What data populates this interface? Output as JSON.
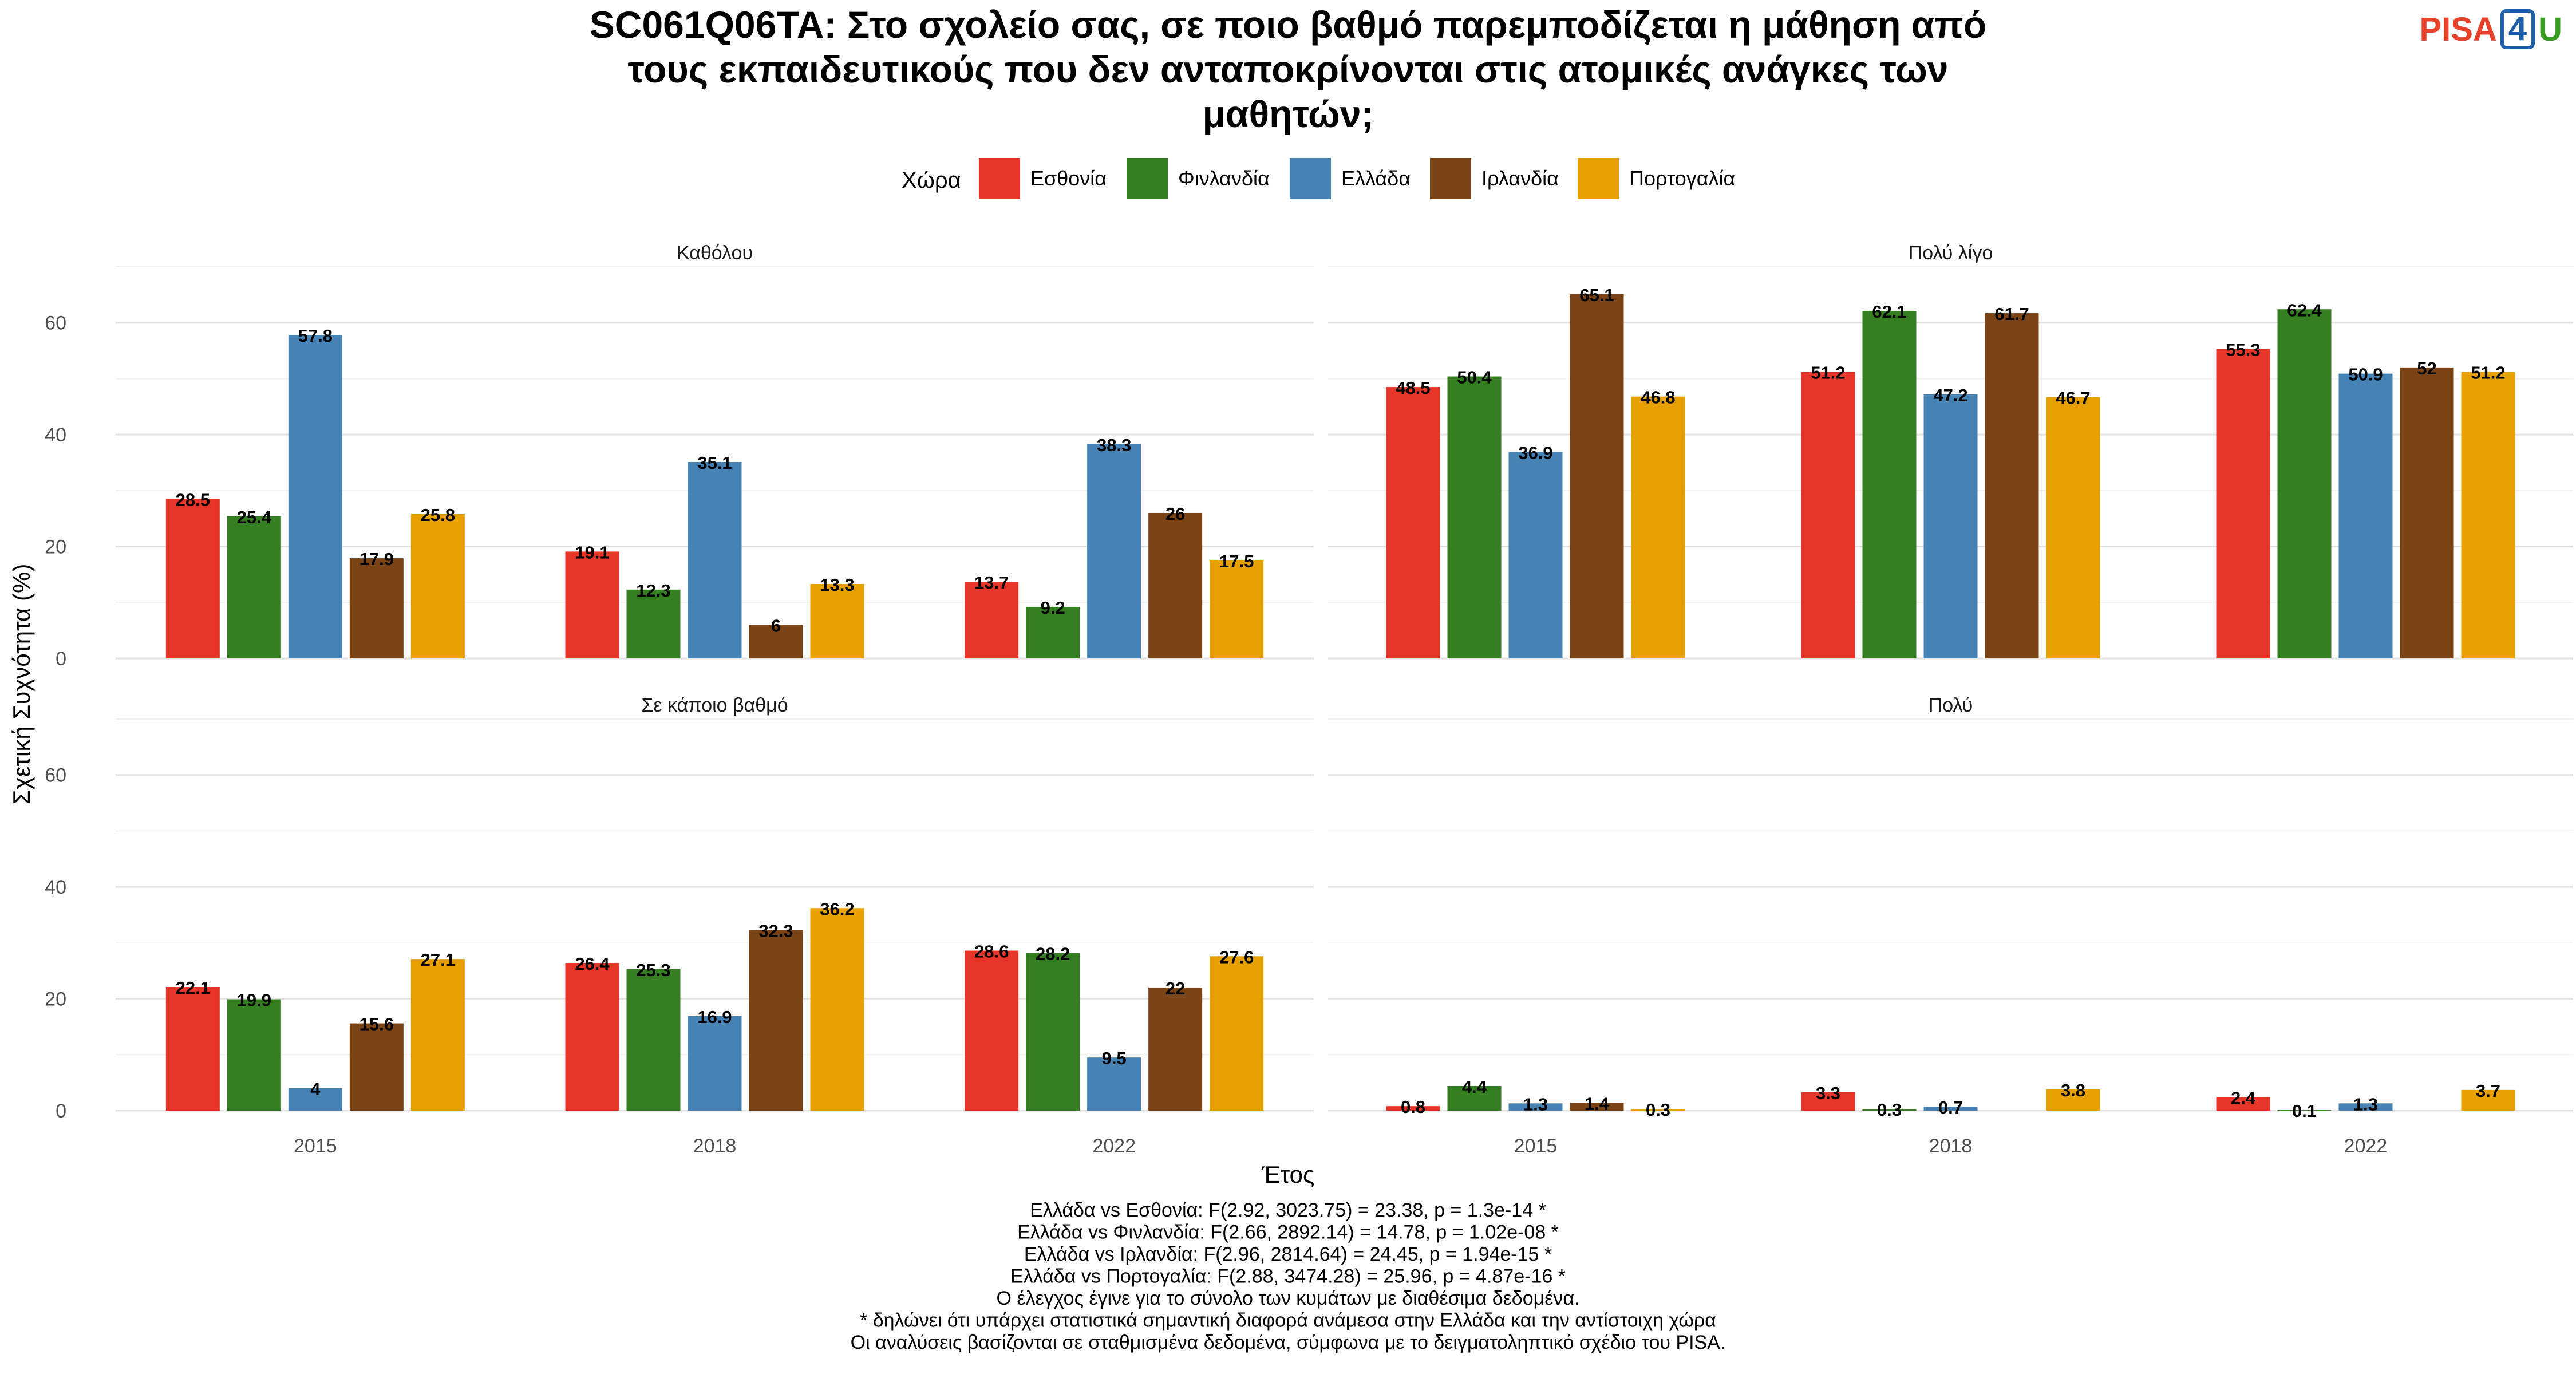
{
  "logo": {
    "main": "PISA",
    "four": "4",
    "u": "U"
  },
  "colors": {
    "series": [
      "#e8352a",
      "#357e22",
      "#4682b4",
      "#7b4416",
      "#e6a100"
    ],
    "grid": "#e3e3e3",
    "text": "#000000",
    "axis_text": "#4d4d4d"
  },
  "chart_data": {
    "type": "bar",
    "title": "SC061Q06TA: Στο σχολείο σας, σε ποιο βαθμό παρεμποδίζεται η μάθηση από τους εκπαιδευτικούς που δεν ανταποκρίνονται στις ατομικές ανάγκες των μαθητών;",
    "title_lines": [
      "SC061Q06TA: Στο σχολείο σας, σε ποιο βαθμό παρεμποδίζεται η μάθηση από",
      "τους εκπαιδευτικούς που δεν ανταποκρίνονται στις ατομικές ανάγκες των",
      "μαθητών;"
    ],
    "legend_title": "Χώρα",
    "legend_position": "top",
    "xlabel": "Έτος",
    "ylabel": "Σχετική Συχνότητα (%)",
    "ylim": [
      0,
      70
    ],
    "yticks": [
      0,
      20,
      40,
      60
    ],
    "grid": true,
    "categories": [
      "2015",
      "2018",
      "2022"
    ],
    "series_names": [
      "Εσθονία",
      "Φινλανδία",
      "Ελλάδα",
      "Ιρλανδία",
      "Πορτογαλία"
    ],
    "panels": [
      {
        "label": "Καθόλου",
        "values": [
          [
            28.5,
            19.1,
            13.7
          ],
          [
            25.4,
            12.3,
            9.2
          ],
          [
            57.8,
            35.1,
            38.3
          ],
          [
            17.9,
            6,
            26
          ],
          [
            25.8,
            13.3,
            17.5
          ]
        ]
      },
      {
        "label": "Πολύ λίγο",
        "values": [
          [
            48.5,
            51.2,
            55.3
          ],
          [
            50.4,
            62.1,
            62.4
          ],
          [
            36.9,
            47.2,
            50.9
          ],
          [
            65.1,
            61.7,
            52
          ],
          [
            46.8,
            46.7,
            51.2
          ]
        ]
      },
      {
        "label": "Σε κάποιο βαθμό",
        "values": [
          [
            22.1,
            26.4,
            28.6
          ],
          [
            19.9,
            25.3,
            28.2
          ],
          [
            4,
            16.9,
            9.5
          ],
          [
            15.6,
            32.3,
            22
          ],
          [
            27.1,
            36.2,
            27.6
          ]
        ]
      },
      {
        "label": "Πολύ",
        "values": [
          [
            0.8,
            3.3,
            2.4
          ],
          [
            4.4,
            0.3,
            0.1
          ],
          [
            1.3,
            0.7,
            1.3
          ],
          [
            1.4,
            null,
            null
          ],
          [
            0.3,
            3.8,
            3.7
          ]
        ]
      }
    ],
    "footnotes": [
      "Ελλάδα vs Εσθονία: F(2.92, 3023.75) = 23.38, p = 1.3e-14 *",
      "Ελλάδα vs Φινλανδία: F(2.66, 2892.14) = 14.78, p = 1.02e-08 *",
      "Ελλάδα vs Ιρλανδία: F(2.96, 2814.64) = 24.45, p = 1.94e-15 *",
      "Ελλάδα vs Πορτογαλία: F(2.88, 3474.28) = 25.96, p = 4.87e-16 *",
      "Ο έλεγχος έγινε για το σύνολο των κυμάτων με διαθέσιμα δεδομένα.",
      "* δηλώνει ότι υπάρχει στατιστικά σημαντική διαφορά ανάμεσα στην Ελλάδα και την αντίστοιχη χώρα",
      "Οι αναλύσεις βασίζονται σε σταθμισμένα δεδομένα, σύμφωνα με το δειγματοληπτικό σχέδιο του PISA."
    ]
  }
}
